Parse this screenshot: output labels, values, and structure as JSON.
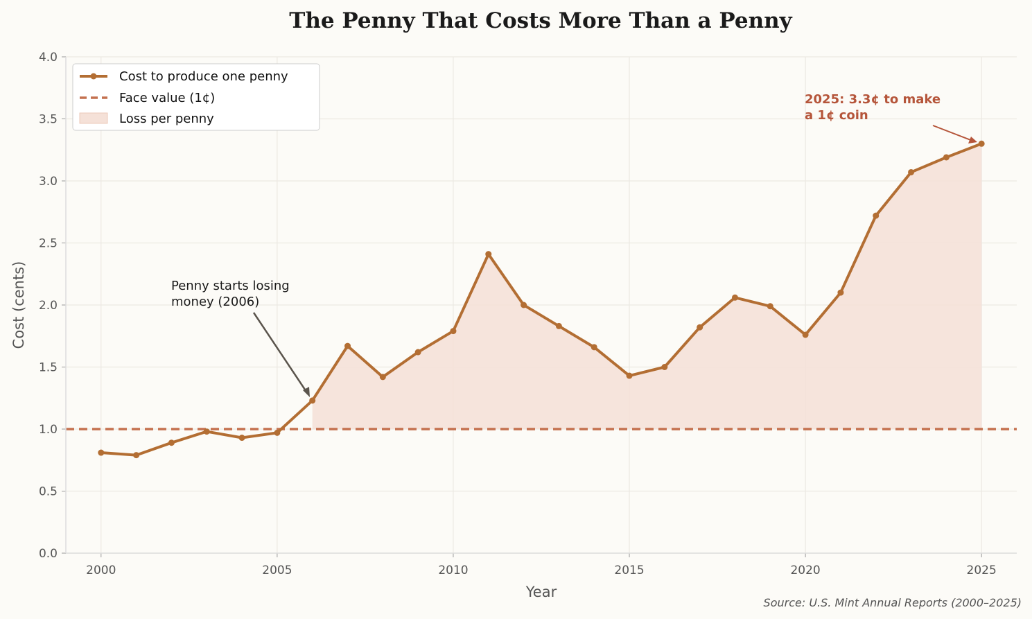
{
  "chart_data": {
    "type": "line",
    "title": "The Penny That Costs More Than a Penny",
    "xlabel": "Year",
    "ylabel": "Cost (cents)",
    "xlim": [
      1999,
      2026
    ],
    "ylim": [
      0,
      4.0
    ],
    "x_ticks": [
      "2000",
      "2005",
      "2010",
      "2015",
      "2020",
      "2025"
    ],
    "y_ticks": [
      "0.0",
      "0.5",
      "1.0",
      "1.5",
      "2.0",
      "2.5",
      "3.0",
      "3.5",
      "4.0"
    ],
    "grid": true,
    "legend_position": "top-left",
    "x": [
      2000,
      2001,
      2002,
      2003,
      2004,
      2005,
      2006,
      2007,
      2008,
      2009,
      2010,
      2011,
      2012,
      2013,
      2014,
      2015,
      2016,
      2017,
      2018,
      2019,
      2020,
      2021,
      2022,
      2023,
      2024,
      2025
    ],
    "series": [
      {
        "name": "Cost to produce one penny",
        "color": "#b36e33",
        "values": [
          0.81,
          0.79,
          0.89,
          0.98,
          0.93,
          0.97,
          1.23,
          1.67,
          1.42,
          1.62,
          1.79,
          2.41,
          2.0,
          1.83,
          1.66,
          1.43,
          1.5,
          1.82,
          2.06,
          1.99,
          1.76,
          2.1,
          2.72,
          3.07,
          3.19,
          3.3
        ]
      }
    ],
    "reference_line": {
      "name": "Face value (1¢)",
      "value": 1.0,
      "color": "#c4714f",
      "style": "dashed"
    },
    "fill": {
      "name": "Loss per penny",
      "color": "#f5e1d8",
      "from_year": 2006
    },
    "annotations": [
      {
        "text_lines": [
          "Penny starts losing",
          "money (2006)"
        ],
        "x": 2006,
        "y": 1.23,
        "color": "#5a544c"
      },
      {
        "text_lines": [
          "2025: 3.3¢ to make",
          "a 1¢ coin"
        ],
        "x": 2025,
        "y": 3.3,
        "color": "#b5553a"
      }
    ],
    "source": "Source: U.S. Mint Annual Reports (2000–2025)"
  }
}
